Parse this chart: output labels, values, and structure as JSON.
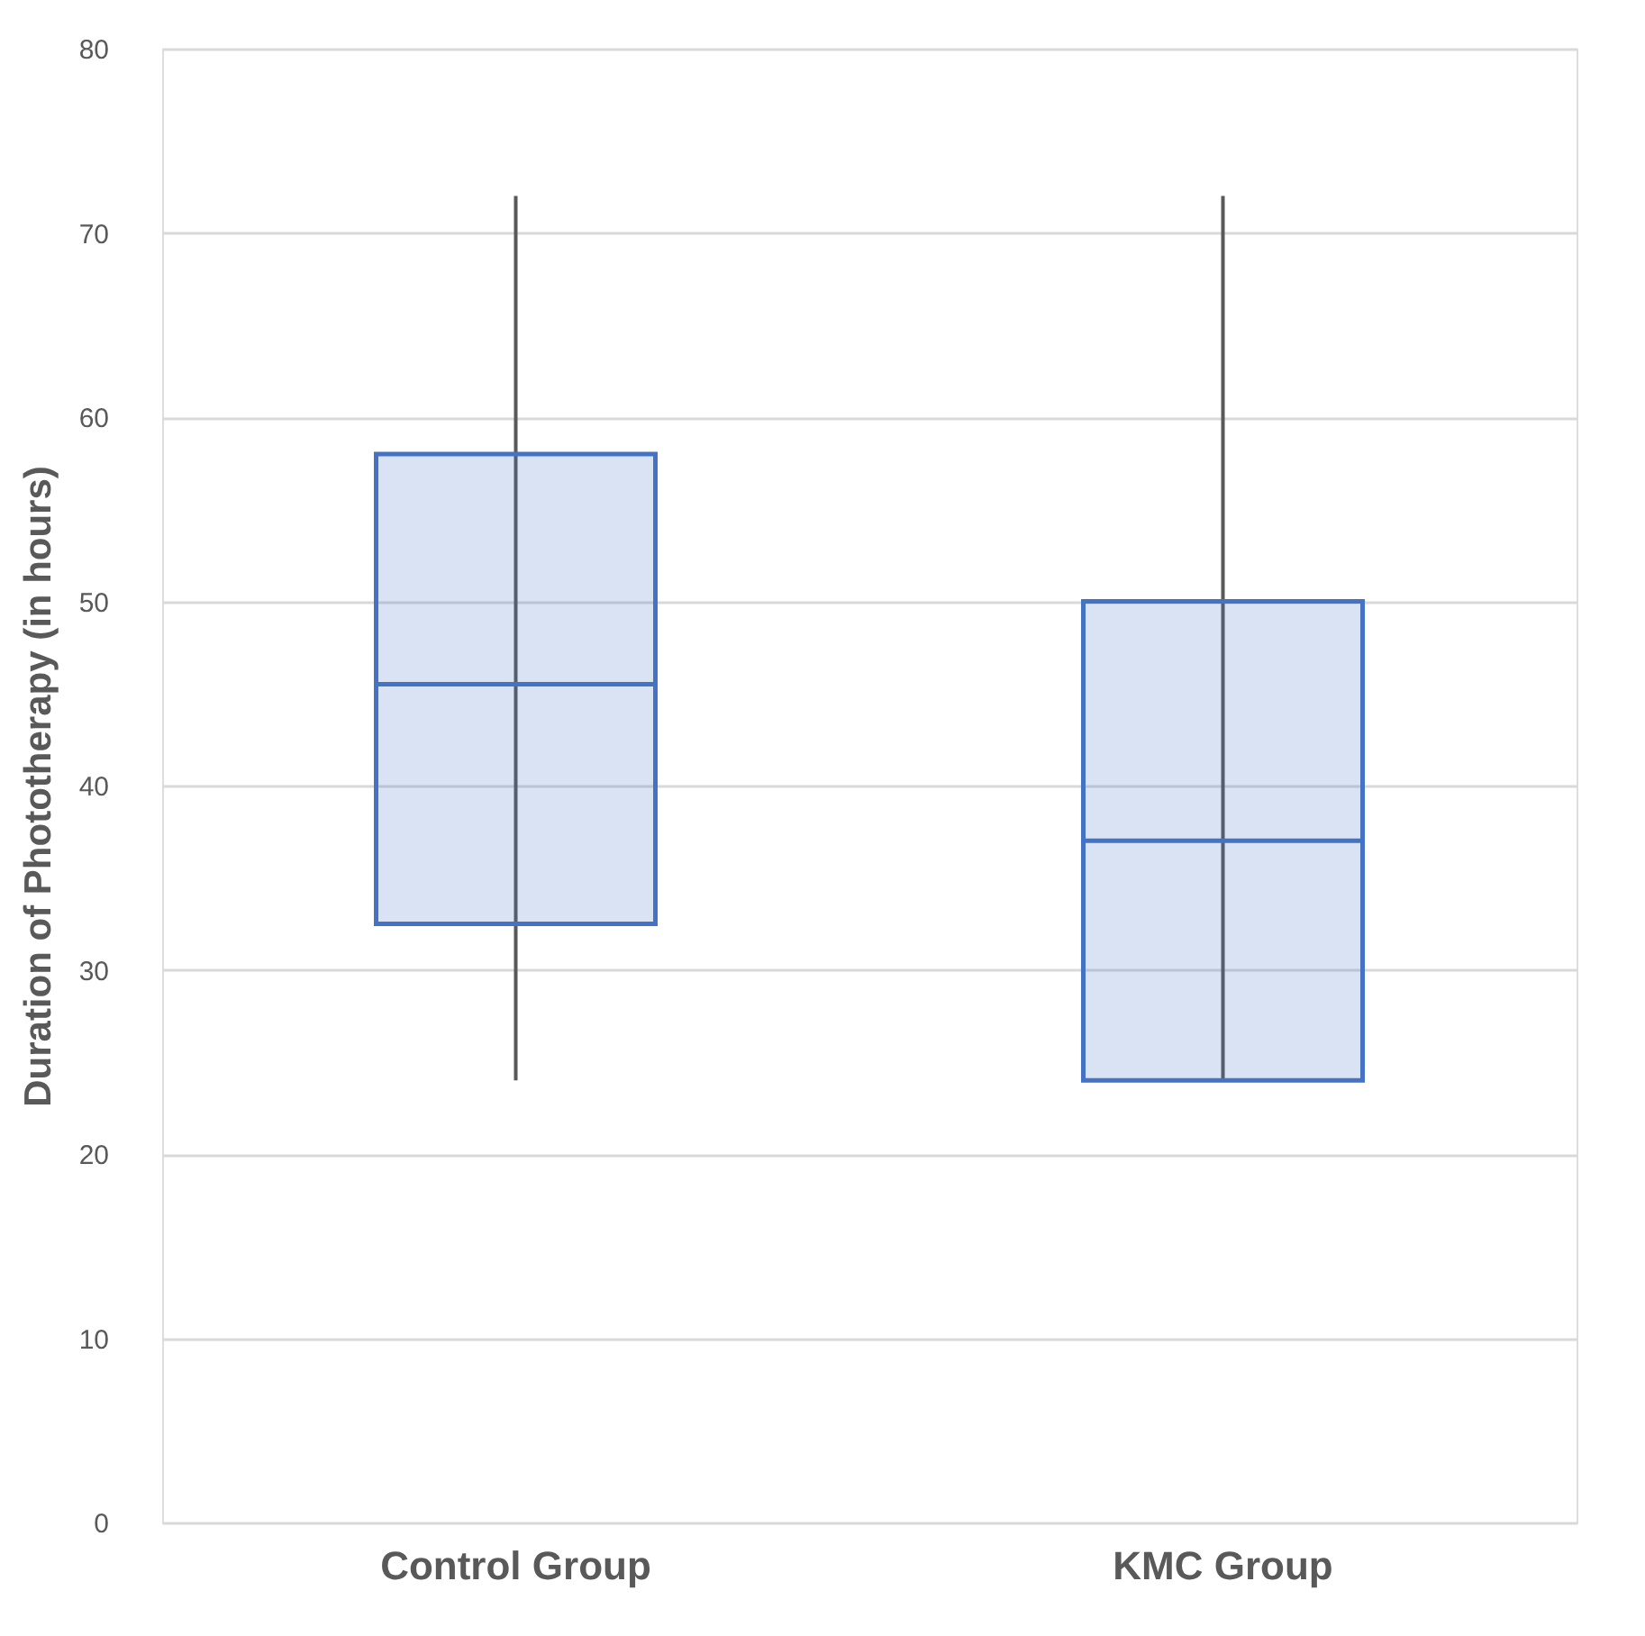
{
  "chart_data": {
    "type": "box",
    "ylabel": "Duration of Phototherapy (in hours)",
    "categories": [
      "Control Group",
      "KMC Group"
    ],
    "boxes": [
      {
        "low": 24,
        "q1": 32.5,
        "median": 45.5,
        "q3": 58,
        "high": 72
      },
      {
        "low": 24,
        "q1": 24,
        "median": 37,
        "q3": 50,
        "high": 72
      }
    ],
    "color": "#4472c4",
    "ylim": [
      0,
      80
    ],
    "yticks": [
      0,
      10,
      20,
      30,
      40,
      50,
      60,
      70,
      80
    ],
    "grid": "y"
  }
}
